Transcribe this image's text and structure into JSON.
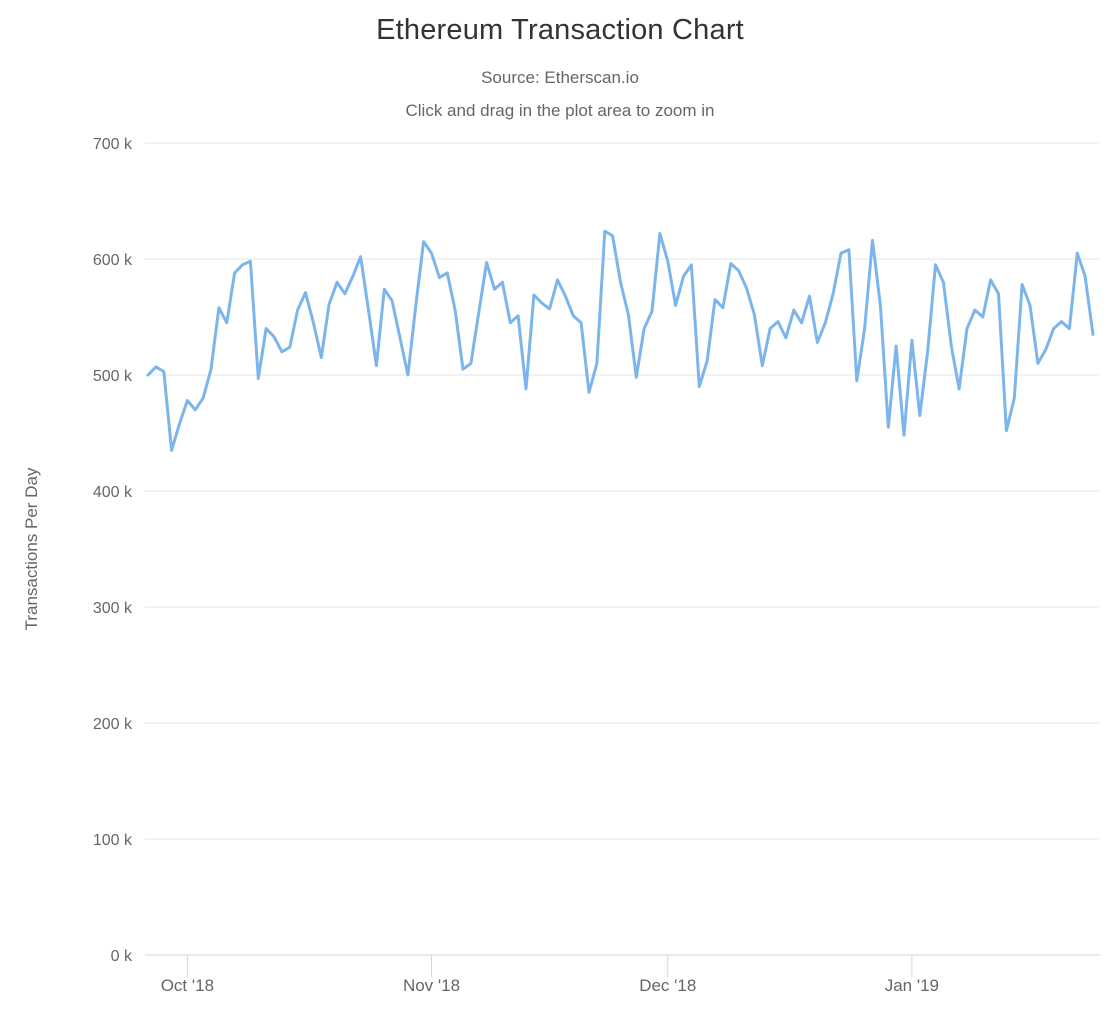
{
  "chart": {
    "title": "Ethereum Transaction Chart",
    "source": "Source: Etherscan.io",
    "zoom_hint": "Click and drag in the plot area to zoom in"
  },
  "chart_data": {
    "type": "line",
    "title": "Ethereum Transaction Chart",
    "subtitle": [
      "Source: Etherscan.io",
      "Click and drag in the plot area to zoom in"
    ],
    "xlabel": "",
    "ylabel": "Transactions Per Day",
    "ylim": [
      0,
      700000
    ],
    "grid": true,
    "legend": false,
    "x_unit": "day",
    "x_tick_labels": [
      "Oct '18",
      "Nov '18",
      "Dec '18",
      "Jan '19"
    ],
    "x_tick_indices": [
      5,
      36,
      66,
      97
    ],
    "y_ticks": [
      0,
      100000,
      200000,
      300000,
      400000,
      500000,
      600000,
      700000
    ],
    "y_tick_labels": [
      "0 k",
      "100 k",
      "200 k",
      "300 k",
      "400 k",
      "500 k",
      "600 k",
      "700 k"
    ],
    "line_color": "#7cb5ec",
    "colors": {
      "grid": "#e6e6e6",
      "axis": "#ccd6eb",
      "axis_text": "#666666",
      "title_text": "#333333"
    },
    "series": [
      {
        "name": "Transactions Per Day",
        "values": [
          500000,
          507000,
          503000,
          435000,
          458000,
          478000,
          470000,
          480000,
          505000,
          558000,
          545000,
          588000,
          595000,
          598000,
          497000,
          540000,
          533000,
          520000,
          524000,
          556000,
          571000,
          545000,
          515000,
          561000,
          580000,
          570000,
          585000,
          602000,
          556000,
          508000,
          574000,
          564000,
          532000,
          500000,
          560000,
          615000,
          605000,
          584000,
          588000,
          556000,
          505000,
          510000,
          554000,
          597000,
          574000,
          580000,
          545000,
          551000,
          488000,
          569000,
          562000,
          557000,
          582000,
          568000,
          551000,
          545000,
          485000,
          510000,
          624000,
          620000,
          580000,
          552000,
          498000,
          540000,
          555000,
          622000,
          598000,
          560000,
          585000,
          595000,
          490000,
          512000,
          565000,
          558000,
          596000,
          590000,
          575000,
          552000,
          508000,
          540000,
          546000,
          532000,
          556000,
          545000,
          568000,
          528000,
          545000,
          570000,
          605000,
          608000,
          495000,
          540000,
          616000,
          560000,
          455000,
          525000,
          448000,
          530000,
          465000,
          520000,
          595000,
          580000,
          525000,
          488000,
          540000,
          556000,
          550000,
          582000,
          570000,
          452000,
          480000,
          578000,
          560000,
          510000,
          522000,
          540000,
          546000,
          540000,
          605000,
          585000,
          535000
        ]
      }
    ]
  }
}
